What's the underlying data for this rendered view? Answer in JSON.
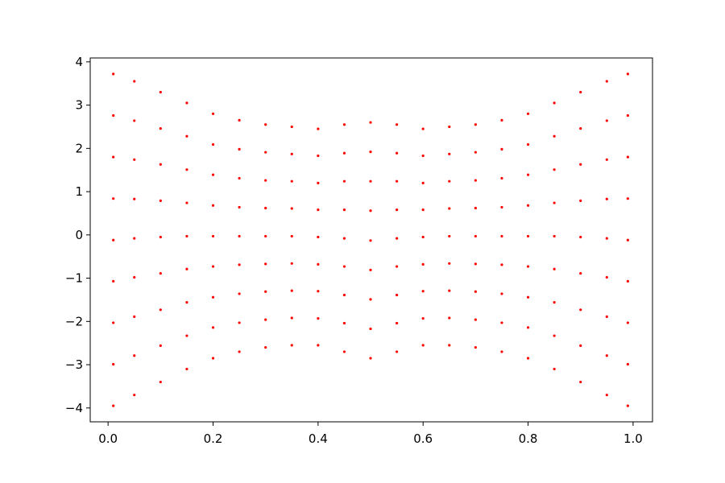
{
  "chart_data": {
    "type": "scatter",
    "x": [
      0.01,
      0.01,
      0.01,
      0.01,
      0.01,
      0.01,
      0.01,
      0.01,
      0.01,
      0.05,
      0.05,
      0.05,
      0.05,
      0.05,
      0.05,
      0.05,
      0.05,
      0.05,
      0.1,
      0.1,
      0.1,
      0.1,
      0.1,
      0.1,
      0.1,
      0.1,
      0.1,
      0.15,
      0.15,
      0.15,
      0.15,
      0.15,
      0.15,
      0.15,
      0.15,
      0.15,
      0.2,
      0.2,
      0.2,
      0.2,
      0.2,
      0.2,
      0.2,
      0.2,
      0.2,
      0.25,
      0.25,
      0.25,
      0.25,
      0.25,
      0.25,
      0.25,
      0.25,
      0.25,
      0.3,
      0.3,
      0.3,
      0.3,
      0.3,
      0.3,
      0.3,
      0.3,
      0.3,
      0.35,
      0.35,
      0.35,
      0.35,
      0.35,
      0.35,
      0.35,
      0.35,
      0.35,
      0.4,
      0.4,
      0.4,
      0.4,
      0.4,
      0.4,
      0.4,
      0.4,
      0.4,
      0.45,
      0.45,
      0.45,
      0.45,
      0.45,
      0.45,
      0.45,
      0.45,
      0.45,
      0.5,
      0.5,
      0.5,
      0.5,
      0.5,
      0.5,
      0.5,
      0.5,
      0.5,
      0.55,
      0.55,
      0.55,
      0.55,
      0.55,
      0.55,
      0.55,
      0.55,
      0.55,
      0.6,
      0.6,
      0.6,
      0.6,
      0.6,
      0.6,
      0.6,
      0.6,
      0.6,
      0.65,
      0.65,
      0.65,
      0.65,
      0.65,
      0.65,
      0.65,
      0.65,
      0.65,
      0.7,
      0.7,
      0.7,
      0.7,
      0.7,
      0.7,
      0.7,
      0.7,
      0.7,
      0.75,
      0.75,
      0.75,
      0.75,
      0.75,
      0.75,
      0.75,
      0.75,
      0.75,
      0.8,
      0.8,
      0.8,
      0.8,
      0.8,
      0.8,
      0.8,
      0.8,
      0.8,
      0.85,
      0.85,
      0.85,
      0.85,
      0.85,
      0.85,
      0.85,
      0.85,
      0.85,
      0.9,
      0.9,
      0.9,
      0.9,
      0.9,
      0.9,
      0.9,
      0.9,
      0.9,
      0.95,
      0.95,
      0.95,
      0.95,
      0.95,
      0.95,
      0.95,
      0.95,
      0.95,
      0.99,
      0.99,
      0.99,
      0.99,
      0.99,
      0.99,
      0.99,
      0.99,
      0.99
    ],
    "series": [
      {
        "color": "#ff0000",
        "values": [
          -3.95,
          -2.99,
          -2.03,
          -1.07,
          -0.12,
          0.84,
          1.8,
          2.76,
          3.72,
          -3.7,
          -2.79,
          -1.89,
          -0.98,
          -0.08,
          0.83,
          1.74,
          2.64,
          3.55,
          -3.4,
          -2.56,
          -1.73,
          -0.89,
          -0.05,
          0.79,
          1.63,
          2.46,
          3.3,
          -3.1,
          -2.33,
          -1.56,
          -0.79,
          -0.03,
          0.74,
          1.51,
          2.28,
          3.05,
          -2.85,
          -2.14,
          -1.44,
          -0.73,
          -0.03,
          0.68,
          1.39,
          2.09,
          2.8,
          -2.7,
          -2.03,
          -1.36,
          -0.69,
          -0.03,
          0.64,
          1.31,
          1.98,
          2.65,
          -2.6,
          -1.96,
          -1.31,
          -0.67,
          -0.03,
          0.62,
          1.26,
          1.91,
          2.55,
          -2.55,
          -1.92,
          -1.29,
          -0.66,
          -0.03,
          0.61,
          1.24,
          1.87,
          2.5,
          -2.55,
          -1.93,
          -1.3,
          -0.68,
          -0.05,
          0.58,
          1.2,
          1.83,
          2.45,
          -2.7,
          -2.04,
          -1.39,
          -0.73,
          -0.08,
          0.58,
          1.24,
          1.89,
          2.55,
          -2.85,
          -2.17,
          -1.49,
          -0.81,
          -0.13,
          0.56,
          1.24,
          1.92,
          2.6,
          -2.7,
          -2.04,
          -1.39,
          -0.73,
          -0.08,
          0.58,
          1.24,
          1.89,
          2.55,
          -2.55,
          -1.93,
          -1.3,
          -0.68,
          -0.05,
          0.58,
          1.2,
          1.83,
          2.45,
          -2.55,
          -1.92,
          -1.29,
          -0.66,
          -0.03,
          0.61,
          1.24,
          1.87,
          2.5,
          -2.6,
          -1.96,
          -1.31,
          -0.67,
          -0.03,
          0.62,
          1.26,
          1.91,
          2.55,
          -2.7,
          -2.03,
          -1.36,
          -0.69,
          -0.03,
          0.64,
          1.31,
          1.98,
          2.65,
          -2.85,
          -2.14,
          -1.44,
          -0.73,
          -0.03,
          0.68,
          1.39,
          2.09,
          2.8,
          -3.1,
          -2.33,
          -1.56,
          -0.79,
          -0.03,
          0.74,
          1.51,
          2.28,
          3.05,
          -3.4,
          -2.56,
          -1.73,
          -0.89,
          -0.05,
          0.79,
          1.63,
          2.46,
          3.3,
          -3.7,
          -2.79,
          -1.89,
          -0.98,
          -0.08,
          0.83,
          1.74,
          2.64,
          3.55,
          -3.95,
          -2.99,
          -2.03,
          -1.07,
          -0.12,
          0.84,
          1.8,
          2.76,
          3.72
        ]
      }
    ],
    "xlim": [
      -0.034,
      1.037
    ],
    "ylim": [
      -4.32,
      4.09
    ],
    "xticks": [
      {
        "value": 0,
        "label": "0.0"
      },
      0.2,
      0.4,
      0.6,
      0.8,
      {
        "value": 1,
        "label": "1.0"
      }
    ],
    "yticks": [
      {
        "value": -4,
        "label": "−4"
      },
      {
        "value": -3,
        "label": "−3"
      },
      {
        "value": -2,
        "label": "−2"
      },
      {
        "value": -1,
        "label": "−1"
      },
      0,
      1,
      2,
      3,
      4
    ]
  }
}
